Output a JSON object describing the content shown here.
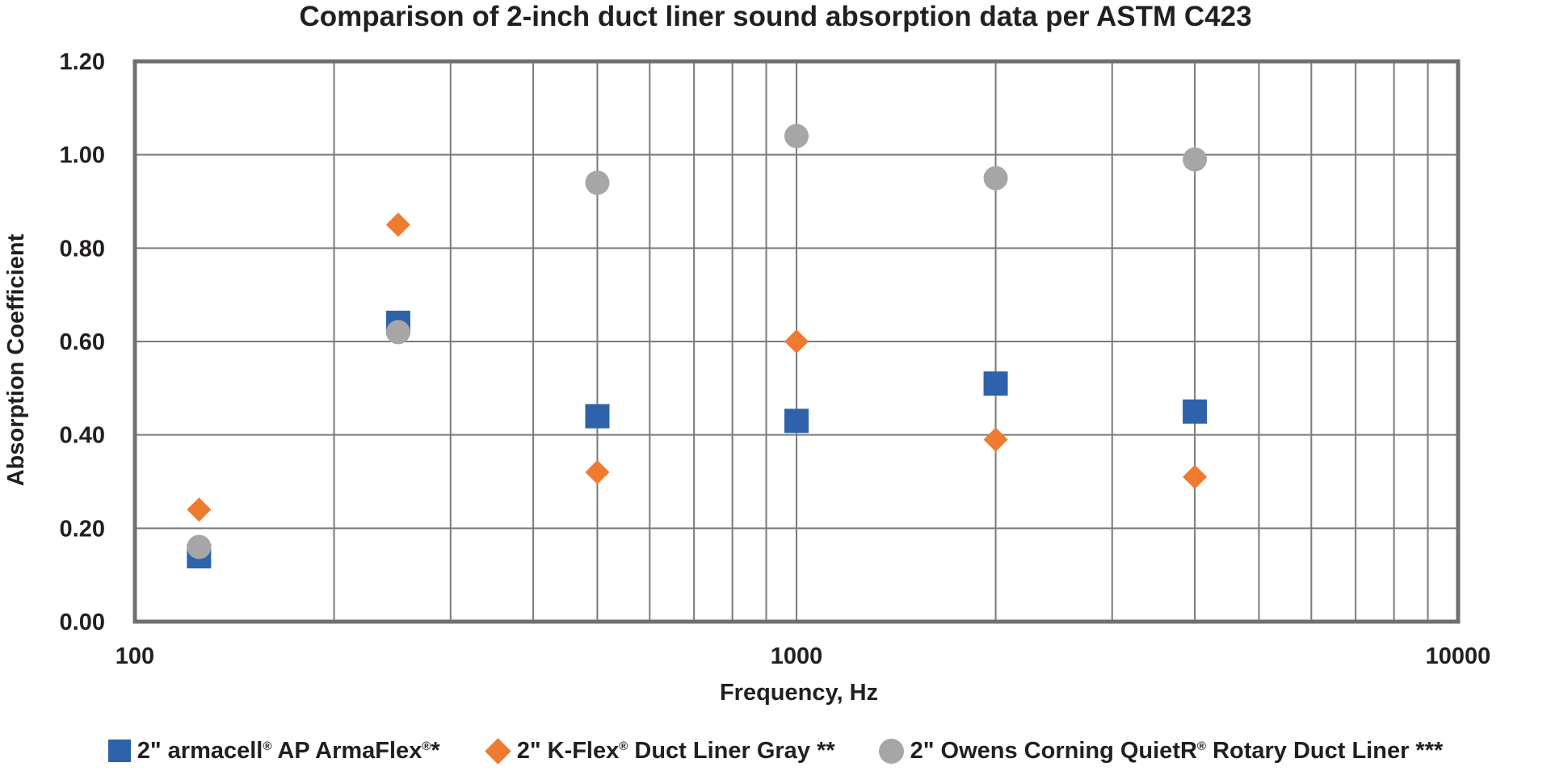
{
  "chart_data": {
    "type": "scatter",
    "title": "Comparison of 2-inch duct liner sound absorption data per ASTM C423",
    "xlabel": "Frequency, Hz",
    "ylabel": "Absorption Coefficient",
    "x_scale": "log",
    "xlim": [
      100,
      10000
    ],
    "ylim": [
      0,
      1.2
    ],
    "x_ticks": [
      "100",
      "1000",
      "10000"
    ],
    "y_ticks": [
      "0.00",
      "0.20",
      "0.40",
      "0.60",
      "0.80",
      "1.00",
      "1.20"
    ],
    "grid": true,
    "legend_position": "bottom",
    "series": [
      {
        "name": "2\" armacell® AP ArmaFlex®*",
        "name_parts": {
          "prefix": "2\" armacell",
          "reg1": "®",
          "middle": " AP ArmaFlex",
          "reg2": "®",
          "suffix": "*"
        },
        "marker": "square",
        "color": "#2e62ab",
        "x": [
          125,
          250,
          500,
          1000,
          2000,
          4000
        ],
        "y": [
          0.14,
          0.64,
          0.44,
          0.43,
          0.51,
          0.45
        ]
      },
      {
        "name": "2\" K-Flex® Duct Liner Gray **",
        "name_parts": {
          "prefix": "2\" K-Flex",
          "reg1": "®",
          "suffix": " Duct Liner Gray **"
        },
        "marker": "diamond",
        "color": "#ee7b30",
        "x": [
          125,
          250,
          500,
          1000,
          2000,
          4000
        ],
        "y": [
          0.24,
          0.85,
          0.32,
          0.6,
          0.39,
          0.31
        ]
      },
      {
        "name": "2\" Owens Corning QuietR® Rotary Duct Liner ***",
        "name_parts": {
          "prefix": "2\" Owens Corning QuietR",
          "reg1": "®",
          "suffix": " Rotary Duct Liner ***"
        },
        "marker": "circle",
        "color": "#a6a6a6",
        "x": [
          125,
          250,
          500,
          1000,
          2000,
          4000
        ],
        "y": [
          0.16,
          0.62,
          0.94,
          1.04,
          0.95,
          0.99
        ]
      }
    ]
  }
}
